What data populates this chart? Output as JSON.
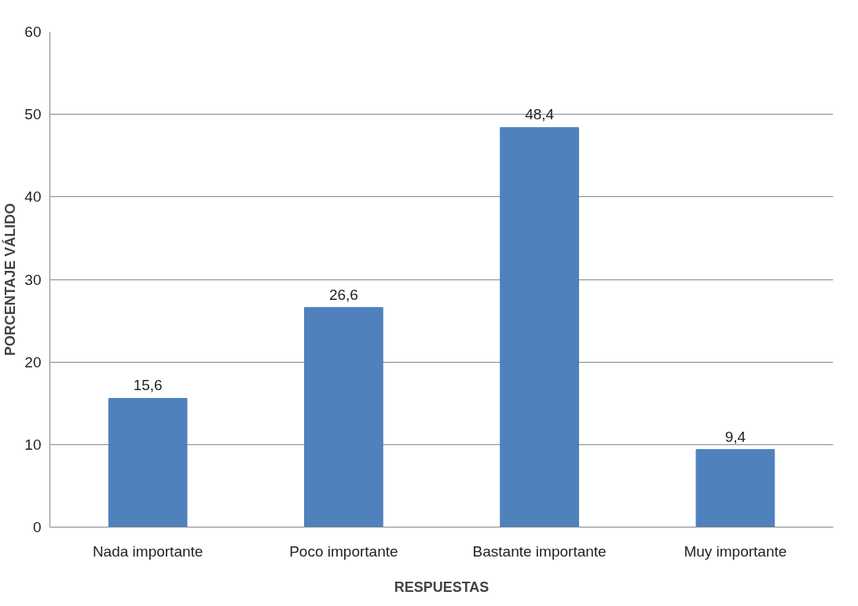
{
  "chart_data": {
    "type": "bar",
    "xlabel": "RESPUESTAS",
    "ylabel": "PORCENTAJE VÁLIDO",
    "categories": [
      "Nada importante",
      "Poco importante",
      "Bastante importante",
      "Muy importante"
    ],
    "values": [
      15.6,
      26.6,
      48.4,
      9.4
    ],
    "color": "#4f81bd",
    "value_labels": [
      "15,6",
      "26,6",
      "48,4",
      "9,4"
    ],
    "ylim": [
      0,
      60
    ],
    "yticks": [
      0,
      10,
      20,
      30,
      40,
      50,
      60
    ],
    "grid": "y"
  }
}
